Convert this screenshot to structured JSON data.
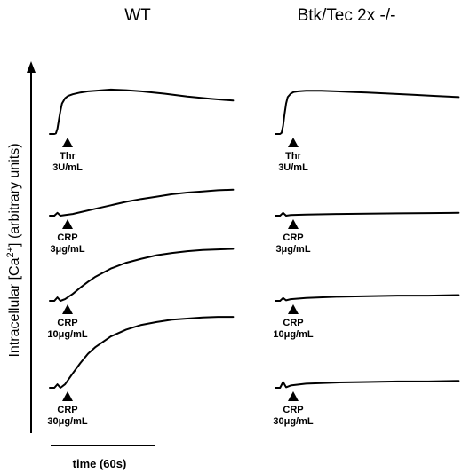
{
  "chart_data": {
    "type": "line",
    "ylabel_main": "Intracellular [Ca",
    "ylabel_sup": "2+",
    "ylabel_tail": "] (arbitrary units)",
    "scalebar_label": "time (60s)",
    "columns": [
      {
        "title": "WT",
        "traces": [
          {
            "stim_agent": "Thr",
            "stim_dose": "3U/mL",
            "x": [
              0,
              3,
              4,
              5,
              6,
              7,
              8,
              10,
              12,
              15,
              20,
              25,
              30,
              40,
              50,
              60,
              75,
              90,
              105,
              120
            ],
            "y": [
              0,
              0,
              0.1,
              0.9,
              2.5,
              4.0,
              5.3,
              6.2,
              6.6,
              6.9,
              7.2,
              7.4,
              7.5,
              7.7,
              7.6,
              7.4,
              7.0,
              6.5,
              6.1,
              5.8
            ]
          },
          {
            "stim_agent": "CRP",
            "stim_dose": "3μg/mL",
            "x": [
              0,
              3,
              5,
              7,
              10,
              15,
              20,
              30,
              40,
              50,
              60,
              70,
              80,
              90,
              100,
              110,
              120
            ],
            "y": [
              0,
              0,
              0.5,
              0,
              0.1,
              0.3,
              0.6,
              1.2,
              1.8,
              2.4,
              2.9,
              3.3,
              3.7,
              4.0,
              4.2,
              4.4,
              4.5
            ]
          },
          {
            "stim_agent": "CRP",
            "stim_dose": "10μg/mL",
            "x": [
              0,
              3,
              5,
              7,
              10,
              15,
              20,
              25,
              30,
              40,
              50,
              60,
              70,
              80,
              90,
              100,
              110,
              120
            ],
            "y": [
              0,
              0,
              0.6,
              0,
              0.3,
              1.2,
              2.3,
              3.3,
              4.2,
              5.6,
              6.6,
              7.3,
              7.9,
              8.3,
              8.6,
              8.8,
              8.9,
              9.0
            ]
          },
          {
            "stim_agent": "CRP",
            "stim_dose": "30μg/mL",
            "x": [
              0,
              3,
              5,
              7,
              10,
              15,
              20,
              25,
              30,
              40,
              50,
              60,
              70,
              80,
              90,
              100,
              110,
              120
            ],
            "y": [
              0,
              0,
              0.6,
              0,
              0.6,
              2.5,
              4.3,
              5.9,
              7.1,
              8.9,
              10.1,
              10.9,
              11.4,
              11.8,
              12.0,
              12.2,
              12.3,
              12.3
            ]
          }
        ]
      },
      {
        "title": "Btk/Tec 2x -/-",
        "traces": [
          {
            "stim_agent": "Thr",
            "stim_dose": "3U/mL",
            "x": [
              0,
              3,
              4,
              5,
              6,
              7,
              8,
              10,
              12,
              15,
              20,
              25,
              30,
              40,
              50,
              60,
              75,
              90,
              105,
              120
            ],
            "y": [
              0,
              0,
              0.2,
              1.4,
              3.5,
              5.3,
              6.4,
              7.0,
              7.3,
              7.4,
              7.5,
              7.5,
              7.5,
              7.4,
              7.3,
              7.2,
              7.0,
              6.8,
              6.6,
              6.4
            ]
          },
          {
            "stim_agent": "CRP",
            "stim_dose": "3μg/mL",
            "x": [
              0,
              3,
              5,
              7,
              10,
              20,
              40,
              60,
              80,
              100,
              120
            ],
            "y": [
              0,
              0,
              0.5,
              0,
              0.1,
              0.2,
              0.3,
              0.35,
              0.4,
              0.45,
              0.5
            ]
          },
          {
            "stim_agent": "CRP",
            "stim_dose": "10μg/mL",
            "x": [
              0,
              3,
              5,
              7,
              10,
              20,
              40,
              60,
              80,
              100,
              120
            ],
            "y": [
              0,
              0,
              0.5,
              0.1,
              0.3,
              0.5,
              0.7,
              0.8,
              0.9,
              0.9,
              1.0
            ]
          },
          {
            "stim_agent": "CRP",
            "stim_dose": "30μg/mL",
            "x": [
              0,
              3,
              5,
              7,
              10,
              20,
              40,
              60,
              80,
              100,
              120
            ],
            "y": [
              0,
              0,
              1.0,
              0.1,
              0.4,
              0.7,
              0.9,
              1.0,
              1.1,
              1.1,
              1.2
            ]
          }
        ]
      }
    ]
  }
}
